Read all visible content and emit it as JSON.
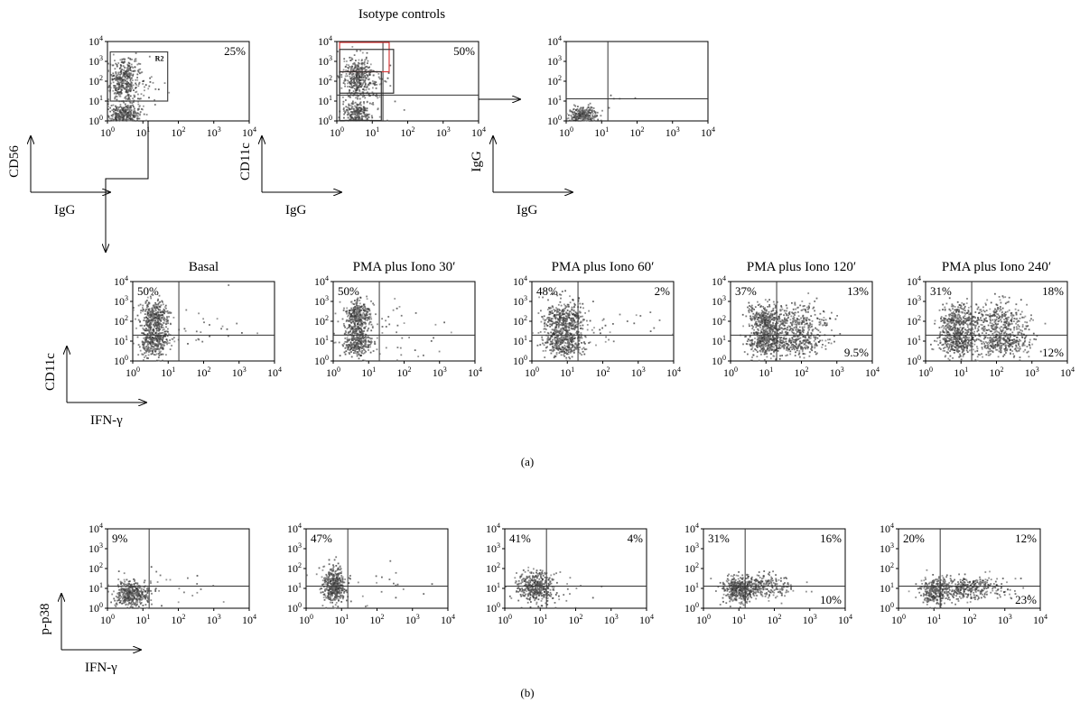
{
  "figure": {
    "section_title": "Isotype controls",
    "panel_labels": [
      "(a)",
      "(b)"
    ]
  },
  "chart_data": [
    {
      "type": "scatter",
      "id": "iso-cd56",
      "title": "",
      "xlabel": "IgG",
      "ylabel": "CD56",
      "xscale": "log",
      "yscale": "log",
      "xlim": [
        1,
        10000
      ],
      "ylim": [
        1,
        10000
      ],
      "x_ticks": [
        "10^0",
        "10^1",
        "10^2",
        "10^3",
        "10^4"
      ],
      "y_ticks": [
        "10^0",
        "10^1",
        "10^2",
        "10^3",
        "10^4"
      ],
      "quadrant_lines": null,
      "percent_labels": [
        {
          "corner": "top-right",
          "text": "25%"
        }
      ],
      "gates": [
        {
          "label": "R2",
          "x": [
            1.2,
            50
          ],
          "y": [
            10,
            3000
          ],
          "color": "#444444"
        }
      ],
      "populations": [
        {
          "cx": 3,
          "cy": 100,
          "sx": 0.2,
          "sy": 0.55,
          "n": 380
        },
        {
          "cx": 3,
          "cy": 2,
          "sx": 0.22,
          "sy": 0.25,
          "n": 300
        },
        {
          "cx": 6,
          "cy": 50,
          "sx": 0.45,
          "sy": 0.7,
          "n": 60
        }
      ]
    },
    {
      "type": "scatter",
      "id": "iso-cd11c",
      "title": "",
      "xlabel": "IgG",
      "ylabel": "CD11c",
      "xscale": "log",
      "yscale": "log",
      "xlim": [
        1,
        10000
      ],
      "ylim": [
        1,
        10000
      ],
      "x_ticks": [
        "10^0",
        "10^1",
        "10^2",
        "10^3",
        "10^4"
      ],
      "y_ticks": [
        "10^0",
        "10^1",
        "10^2",
        "10^3",
        "10^4"
      ],
      "quadrant_lines": {
        "x": 20,
        "y": 20
      },
      "percent_labels": [
        {
          "corner": "top-right",
          "text": "50%"
        }
      ],
      "gates": [
        {
          "label": "",
          "x": [
            1.2,
            30
          ],
          "y": [
            300,
            9000
          ],
          "color": "#d83a3a"
        },
        {
          "label": "",
          "x": [
            1.2,
            40
          ],
          "y": [
            25,
            4000
          ],
          "color": "#333333"
        },
        {
          "label": "",
          "x": [
            1.2,
            18
          ],
          "y": [
            1.05,
            300
          ],
          "color": "#333333"
        }
      ],
      "populations": [
        {
          "cx": 4,
          "cy": 150,
          "sx": 0.22,
          "sy": 0.5,
          "n": 380
        },
        {
          "cx": 4,
          "cy": 2,
          "sx": 0.2,
          "sy": 0.3,
          "n": 260
        },
        {
          "cx": 7,
          "cy": 30,
          "sx": 0.4,
          "sy": 0.6,
          "n": 60
        }
      ]
    },
    {
      "type": "scatter",
      "id": "iso-igg",
      "title": "",
      "xlabel": "IgG",
      "ylabel": "IgG",
      "xscale": "log",
      "yscale": "log",
      "xlim": [
        1,
        10000
      ],
      "ylim": [
        1,
        10000
      ],
      "x_ticks": [
        "10^0",
        "10^1",
        "10^2",
        "10^3",
        "10^4"
      ],
      "y_ticks": [
        "10^0",
        "10^1",
        "10^2",
        "10^3",
        "10^4"
      ],
      "quadrant_lines": {
        "x": 15,
        "y": 13
      },
      "percent_labels": [],
      "gates": [],
      "populations": [
        {
          "cx": 3,
          "cy": 2,
          "sx": 0.2,
          "sy": 0.2,
          "n": 260
        },
        {
          "cx": 30,
          "cy": 15,
          "sx": 0.5,
          "sy": 0.3,
          "n": 4
        }
      ]
    },
    {
      "type": "scatter",
      "id": "a-basal",
      "title": "Basal",
      "xlabel": "IFN-γ",
      "ylabel": "CD11c",
      "xscale": "log",
      "yscale": "log",
      "xlim": [
        1,
        10000
      ],
      "ylim": [
        1,
        10000
      ],
      "x_ticks": [
        "10^0",
        "10^1",
        "10^2",
        "10^3",
        "10^4"
      ],
      "y_ticks": [
        "10^0",
        "10^1",
        "10^2",
        "10^3",
        "10^4"
      ],
      "quadrant_lines": {
        "x": 20,
        "y": 20
      },
      "percent_labels": [
        {
          "corner": "top-left",
          "text": "50%"
        }
      ],
      "gates": [],
      "populations": [
        {
          "cx": 4,
          "cy": 150,
          "sx": 0.2,
          "sy": 0.45,
          "n": 380
        },
        {
          "cx": 4,
          "cy": 8,
          "sx": 0.22,
          "sy": 0.35,
          "n": 300
        },
        {
          "cx": 60,
          "cy": 50,
          "sx": 0.75,
          "sy": 0.7,
          "n": 40
        }
      ]
    },
    {
      "type": "scatter",
      "id": "a-30",
      "title": "PMA plus Iono 30′",
      "xlabel": "",
      "ylabel": "",
      "xscale": "log",
      "yscale": "log",
      "xlim": [
        1,
        10000
      ],
      "ylim": [
        1,
        10000
      ],
      "x_ticks": [
        "10^0",
        "10^1",
        "10^2",
        "10^3",
        "10^4"
      ],
      "y_ticks": [
        "10^0",
        "10^1",
        "10^2",
        "10^3",
        "10^4"
      ],
      "quadrant_lines": {
        "x": 20,
        "y": 20
      },
      "percent_labels": [
        {
          "corner": "top-left",
          "text": "50%"
        }
      ],
      "gates": [],
      "populations": [
        {
          "cx": 5,
          "cy": 150,
          "sx": 0.18,
          "sy": 0.45,
          "n": 380
        },
        {
          "cx": 5,
          "cy": 8,
          "sx": 0.2,
          "sy": 0.35,
          "n": 300
        },
        {
          "cx": 60,
          "cy": 50,
          "sx": 0.75,
          "sy": 0.7,
          "n": 40
        }
      ]
    },
    {
      "type": "scatter",
      "id": "a-60",
      "title": "PMA plus Iono 60′",
      "xlabel": "",
      "ylabel": "",
      "xscale": "log",
      "yscale": "log",
      "xlim": [
        1,
        10000
      ],
      "ylim": [
        1,
        10000
      ],
      "x_ticks": [
        "10^0",
        "10^1",
        "10^2",
        "10^3",
        "10^4"
      ],
      "y_ticks": [
        "10^0",
        "10^1",
        "10^2",
        "10^3",
        "10^4"
      ],
      "quadrant_lines": {
        "x": 20,
        "y": 20
      },
      "percent_labels": [
        {
          "corner": "top-left",
          "text": "48%"
        },
        {
          "corner": "top-right",
          "text": "2%"
        }
      ],
      "gates": [],
      "populations": [
        {
          "cx": 8,
          "cy": 120,
          "sx": 0.28,
          "sy": 0.45,
          "n": 420
        },
        {
          "cx": 8,
          "cy": 8,
          "sx": 0.28,
          "sy": 0.35,
          "n": 330
        },
        {
          "cx": 80,
          "cy": 50,
          "sx": 0.75,
          "sy": 0.7,
          "n": 40
        }
      ]
    },
    {
      "type": "scatter",
      "id": "a-120",
      "title": "PMA plus Iono 120′",
      "xlabel": "",
      "ylabel": "",
      "xscale": "log",
      "yscale": "log",
      "xlim": [
        1,
        10000
      ],
      "ylim": [
        1,
        10000
      ],
      "x_ticks": [
        "10^0",
        "10^1",
        "10^2",
        "10^3",
        "10^4"
      ],
      "y_ticks": [
        "10^0",
        "10^1",
        "10^2",
        "10^3",
        "10^4"
      ],
      "quadrant_lines": {
        "x": 20,
        "y": 20
      },
      "percent_labels": [
        {
          "corner": "top-left",
          "text": "37%"
        },
        {
          "corner": "top-right",
          "text": "13%"
        },
        {
          "corner": "bottom-right",
          "text": "9.5%"
        }
      ],
      "gates": [],
      "populations": [
        {
          "cx": 10,
          "cy": 100,
          "sx": 0.25,
          "sy": 0.45,
          "n": 380
        },
        {
          "cx": 10,
          "cy": 8,
          "sx": 0.25,
          "sy": 0.35,
          "n": 300
        },
        {
          "cx": 80,
          "cy": 60,
          "sx": 0.4,
          "sy": 0.55,
          "n": 320
        },
        {
          "cx": 80,
          "cy": 7,
          "sx": 0.4,
          "sy": 0.3,
          "n": 200
        }
      ]
    },
    {
      "type": "scatter",
      "id": "a-240",
      "title": "PMA plus Iono 240′",
      "xlabel": "",
      "ylabel": "",
      "xscale": "log",
      "yscale": "log",
      "xlim": [
        1,
        10000
      ],
      "ylim": [
        1,
        10000
      ],
      "x_ticks": [
        "10^0",
        "10^1",
        "10^2",
        "10^3",
        "10^4"
      ],
      "y_ticks": [
        "10^0",
        "10^1",
        "10^2",
        "10^3",
        "10^4"
      ],
      "quadrant_lines": {
        "x": 20,
        "y": 20
      },
      "percent_labels": [
        {
          "corner": "top-left",
          "text": "31%"
        },
        {
          "corner": "top-right",
          "text": "18%"
        },
        {
          "corner": "bottom-right",
          "text": "12%"
        }
      ],
      "gates": [],
      "populations": [
        {
          "cx": 8,
          "cy": 100,
          "sx": 0.25,
          "sy": 0.45,
          "n": 330
        },
        {
          "cx": 8,
          "cy": 8,
          "sx": 0.25,
          "sy": 0.35,
          "n": 280
        },
        {
          "cx": 120,
          "cy": 60,
          "sx": 0.45,
          "sy": 0.55,
          "n": 380
        },
        {
          "cx": 120,
          "cy": 7,
          "sx": 0.45,
          "sy": 0.3,
          "n": 260
        }
      ]
    },
    {
      "type": "scatter",
      "id": "b-1",
      "title": "",
      "xlabel": "IFN-γ",
      "ylabel": "p-p38",
      "xscale": "log",
      "yscale": "log",
      "xlim": [
        1,
        10000
      ],
      "ylim": [
        1,
        10000
      ],
      "x_ticks": [
        "10^0",
        "10^1",
        "10^2",
        "10^3",
        "10^4"
      ],
      "y_ticks": [
        "10^0",
        "10^1",
        "10^2",
        "10^3",
        "10^4"
      ],
      "quadrant_lines": {
        "x": 15,
        "y": 13
      },
      "percent_labels": [
        {
          "corner": "top-left",
          "text": "9%"
        }
      ],
      "gates": [],
      "populations": [
        {
          "cx": 5,
          "cy": 5,
          "sx": 0.25,
          "sy": 0.3,
          "n": 420
        },
        {
          "cx": 60,
          "cy": 10,
          "sx": 0.7,
          "sy": 0.5,
          "n": 30
        }
      ]
    },
    {
      "type": "scatter",
      "id": "b-2",
      "title": "",
      "xlabel": "",
      "ylabel": "",
      "xscale": "log",
      "yscale": "log",
      "xlim": [
        1,
        10000
      ],
      "ylim": [
        1,
        10000
      ],
      "x_ticks": [
        "10^0",
        "10^1",
        "10^2",
        "10^3",
        "10^4"
      ],
      "y_ticks": [
        "10^0",
        "10^1",
        "10^2",
        "10^3",
        "10^4"
      ],
      "quadrant_lines": {
        "x": 15,
        "y": 13
      },
      "percent_labels": [
        {
          "corner": "top-left",
          "text": "47%"
        }
      ],
      "gates": [],
      "populations": [
        {
          "cx": 6,
          "cy": 15,
          "sx": 0.15,
          "sy": 0.45,
          "n": 420
        },
        {
          "cx": 60,
          "cy": 10,
          "sx": 0.7,
          "sy": 0.5,
          "n": 25
        }
      ]
    },
    {
      "type": "scatter",
      "id": "b-3",
      "title": "",
      "xlabel": "",
      "ylabel": "",
      "xscale": "log",
      "yscale": "log",
      "xlim": [
        1,
        10000
      ],
      "ylim": [
        1,
        10000
      ],
      "x_ticks": [
        "10^0",
        "10^1",
        "10^2",
        "10^3",
        "10^4"
      ],
      "y_ticks": [
        "10^0",
        "10^1",
        "10^2",
        "10^3",
        "10^4"
      ],
      "quadrant_lines": {
        "x": 15,
        "y": 13
      },
      "percent_labels": [
        {
          "corner": "top-left",
          "text": "41%"
        },
        {
          "corner": "top-right",
          "text": "4%"
        }
      ],
      "gates": [],
      "populations": [
        {
          "cx": 7,
          "cy": 12,
          "sx": 0.25,
          "sy": 0.4,
          "n": 420
        },
        {
          "cx": 60,
          "cy": 10,
          "sx": 0.7,
          "sy": 0.5,
          "n": 25
        }
      ]
    },
    {
      "type": "scatter",
      "id": "b-4",
      "title": "",
      "xlabel": "",
      "ylabel": "",
      "xscale": "log",
      "yscale": "log",
      "xlim": [
        1,
        10000
      ],
      "ylim": [
        1,
        10000
      ],
      "x_ticks": [
        "10^0",
        "10^1",
        "10^2",
        "10^3",
        "10^4"
      ],
      "y_ticks": [
        "10^0",
        "10^1",
        "10^2",
        "10^3",
        "10^4"
      ],
      "quadrant_lines": {
        "x": 15,
        "y": 13
      },
      "percent_labels": [
        {
          "corner": "top-left",
          "text": "31%"
        },
        {
          "corner": "top-right",
          "text": "16%"
        },
        {
          "corner": "bottom-right",
          "text": "10%"
        }
      ],
      "gates": [],
      "populations": [
        {
          "cx": 10,
          "cy": 8,
          "sx": 0.2,
          "sy": 0.35,
          "n": 300
        },
        {
          "cx": 40,
          "cy": 12,
          "sx": 0.45,
          "sy": 0.3,
          "n": 320
        }
      ]
    },
    {
      "type": "scatter",
      "id": "b-5",
      "title": "",
      "xlabel": "",
      "ylabel": "",
      "xscale": "log",
      "yscale": "log",
      "xlim": [
        1,
        10000
      ],
      "ylim": [
        1,
        10000
      ],
      "x_ticks": [
        "10^0",
        "10^1",
        "10^2",
        "10^3",
        "10^4"
      ],
      "y_ticks": [
        "10^0",
        "10^1",
        "10^2",
        "10^3",
        "10^4"
      ],
      "quadrant_lines": {
        "x": 15,
        "y": 13
      },
      "percent_labels": [
        {
          "corner": "top-left",
          "text": "20%"
        },
        {
          "corner": "top-right",
          "text": "12%"
        },
        {
          "corner": "bottom-right",
          "text": "23%"
        }
      ],
      "gates": [],
      "populations": [
        {
          "cx": 10,
          "cy": 7,
          "sx": 0.2,
          "sy": 0.35,
          "n": 260
        },
        {
          "cx": 80,
          "cy": 10,
          "sx": 0.55,
          "sy": 0.3,
          "n": 380
        }
      ]
    }
  ]
}
